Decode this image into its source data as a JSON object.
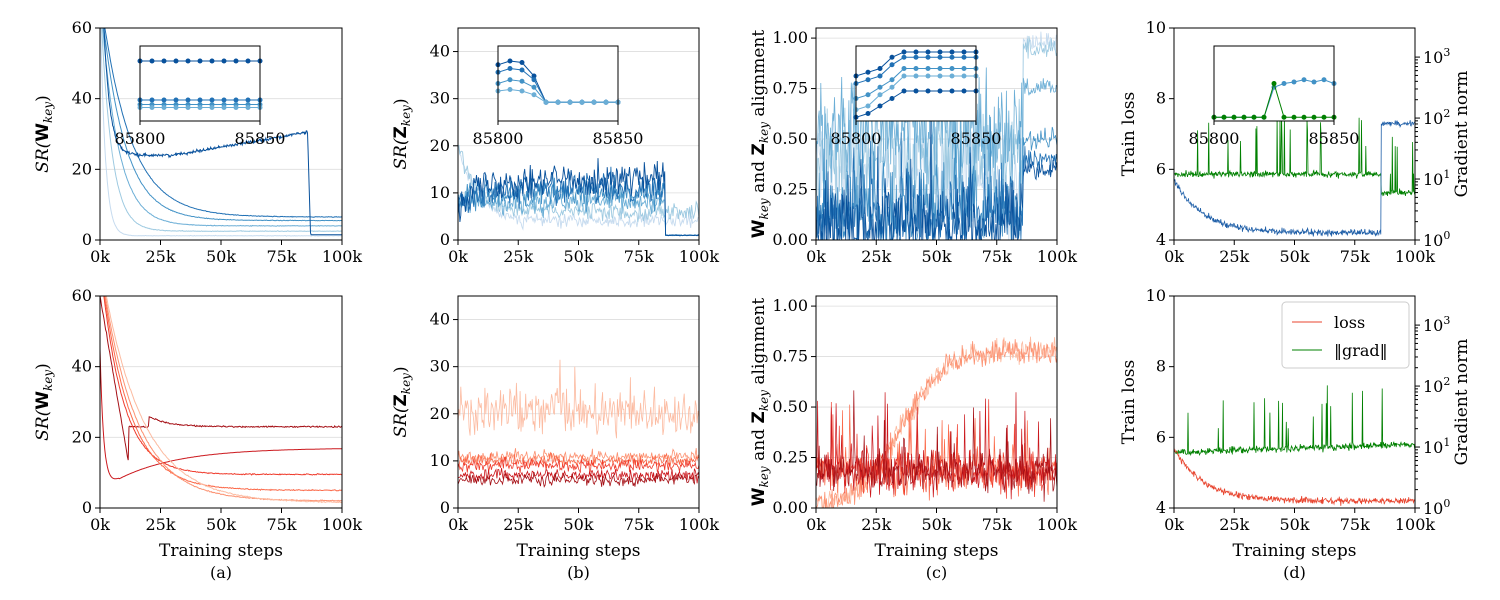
{
  "colors": {
    "blue_shades": [
      "#c6dbef",
      "#9ecae1",
      "#6baed6",
      "#4292c6",
      "#2171b5",
      "#08519c"
    ],
    "red_shades": [
      "#fcbba1",
      "#fc9272",
      "#fb6a4a",
      "#ef3b2c",
      "#cb181d",
      "#a50f15"
    ],
    "loss_blue": "#1f5fa8",
    "loss_red": "#e8452f",
    "grad_green": "#008000"
  },
  "captions": [
    "(a)",
    "(b)",
    "(c)",
    "(d)"
  ],
  "chart_data": [
    {
      "id": "a-top",
      "type": "line",
      "title": "",
      "ylabel_parts": [
        "SR(",
        "W",
        "key",
        ")"
      ],
      "xlabel": "",
      "xlim": [
        0,
        100000
      ],
      "ylim": [
        0,
        60
      ],
      "xticks": [
        "0k",
        "25k",
        "50k",
        "75k",
        "100k"
      ],
      "yticks": [
        "0",
        "20",
        "40",
        "60"
      ],
      "grid": true,
      "palette": "blue",
      "series_desc": "6 runs; sharp initial drop from >60; one run plateaus ~24-30 then collapses near 85.8k",
      "inset": {
        "xlim": [
          85800,
          85850
        ],
        "xticks": [
          "85800",
          "85850"
        ],
        "series_levels": [
          0.85,
          0.27,
          0.22,
          0.17
        ]
      }
    },
    {
      "id": "b-top",
      "type": "line",
      "ylabel_parts": [
        "SR(",
        "Z",
        "key",
        ")"
      ],
      "xlabel": "",
      "xlim": [
        0,
        100000
      ],
      "ylim": [
        0,
        45
      ],
      "xticks": [
        "0k",
        "25k",
        "50k",
        "75k",
        "100k"
      ],
      "yticks": [
        "0",
        "10",
        "20",
        "30",
        "40"
      ],
      "grid": true,
      "palette": "blue",
      "series_desc": "noisy runs between ~5 and ~15, dropping to ~1 at 85.8k",
      "inset": {
        "xlim": [
          85800,
          85850
        ],
        "xticks": [
          "85800",
          "85850"
        ]
      }
    },
    {
      "id": "c-top",
      "type": "line",
      "ylabel_parts": [
        "W",
        "key",
        " and ",
        "Z",
        "key",
        " alignment"
      ],
      "xlabel": "",
      "xlim": [
        0,
        100000
      ],
      "ylim": [
        0,
        1.05
      ],
      "xticks": [
        "0k",
        "25k",
        "50k",
        "75k",
        "100k"
      ],
      "yticks": [
        "0.00",
        "0.25",
        "0.50",
        "0.75",
        "1.00"
      ],
      "grid": true,
      "palette": "blue",
      "series_desc": "very noisy alignment 0-0.9; after 85.8k lines jump to ~0.4-1.0",
      "inset": {
        "xlim": [
          85800,
          85850
        ],
        "xticks": [
          "85800",
          "85850"
        ]
      }
    },
    {
      "id": "d-top",
      "type": "line",
      "ylabel": "Train loss",
      "ylabel_right": "Gradient norm",
      "xlabel": "",
      "xlim": [
        0,
        100000
      ],
      "ylim": [
        4,
        10
      ],
      "ylim_right_log": [
        1,
        3000
      ],
      "xticks": [
        "0k",
        "25k",
        "50k",
        "75k",
        "100k"
      ],
      "yticks": [
        "4",
        "6",
        "8",
        "10"
      ],
      "yticks_right": [
        {
          "base": "10",
          "exp": "0",
          "v": 1
        },
        {
          "base": "10",
          "exp": "1",
          "v": 10
        },
        {
          "base": "10",
          "exp": "2",
          "v": 100
        },
        {
          "base": "10",
          "exp": "3",
          "v": 1000
        }
      ],
      "grid": false,
      "series": [
        {
          "name": "loss",
          "desc": "starts ~5.7, decays to ~4.3 then jumps to ~7.3 at 85.8k"
        },
        {
          "name": "||grad||",
          "desc": "~10-15 with spikes up to ~200, drops to ~6 after 85.8k"
        }
      ],
      "inset": {
        "xlim": [
          85800,
          85850
        ],
        "xticks": [
          "85800",
          "85850"
        ]
      }
    },
    {
      "id": "a-bot",
      "type": "line",
      "ylabel_parts": [
        "SR(",
        "W",
        "key",
        ")"
      ],
      "xlabel": "Training steps",
      "xlim": [
        0,
        100000
      ],
      "ylim": [
        0,
        60
      ],
      "xticks": [
        "0k",
        "25k",
        "50k",
        "75k",
        "100k"
      ],
      "yticks": [
        "0",
        "20",
        "40",
        "60"
      ],
      "grid": true,
      "palette": "red",
      "series_final": [
        23,
        17,
        9.5,
        5,
        2,
        1.5
      ]
    },
    {
      "id": "b-bot",
      "type": "line",
      "ylabel_parts": [
        "SR(",
        "Z",
        "key",
        ")"
      ],
      "xlabel": "Training steps",
      "xlim": [
        0,
        100000
      ],
      "ylim": [
        0,
        45
      ],
      "xticks": [
        "0k",
        "25k",
        "50k",
        "75k",
        "100k"
      ],
      "yticks": [
        "0",
        "10",
        "20",
        "30",
        "40"
      ],
      "grid": true,
      "palette": "red",
      "series_level": [
        20,
        11,
        10,
        9,
        7,
        6
      ]
    },
    {
      "id": "c-bot",
      "type": "line",
      "ylabel_parts": [
        "W",
        "key",
        " and ",
        "Z",
        "key",
        " alignment"
      ],
      "xlabel": "Training steps",
      "xlim": [
        0,
        100000
      ],
      "ylim": [
        0,
        1.05
      ],
      "xticks": [
        "0k",
        "25k",
        "50k",
        "75k",
        "100k"
      ],
      "yticks": [
        "0.00",
        "0.25",
        "0.50",
        "0.75",
        "1.00"
      ],
      "grid": true,
      "palette": "red",
      "series_desc": "two runs rise to ~0.75, others noisy 0-0.4"
    },
    {
      "id": "d-bot",
      "type": "line",
      "ylabel": "Train loss",
      "ylabel_right": "Gradient norm",
      "xlabel": "Training steps",
      "xlim": [
        0,
        100000
      ],
      "ylim": [
        4,
        10
      ],
      "ylim_right_log": [
        1,
        3000
      ],
      "xticks": [
        "0k",
        "25k",
        "50k",
        "75k",
        "100k"
      ],
      "yticks": [
        "4",
        "6",
        "8",
        "10"
      ],
      "yticks_right": [
        {
          "base": "10",
          "exp": "0",
          "v": 1
        },
        {
          "base": "10",
          "exp": "1",
          "v": 10
        },
        {
          "base": "10",
          "exp": "2",
          "v": 100
        },
        {
          "base": "10",
          "exp": "3",
          "v": 1000
        }
      ],
      "grid": false,
      "legend": {
        "location": "top-right",
        "entries": [
          "loss",
          "‖grad‖"
        ]
      },
      "series": [
        {
          "name": "loss",
          "desc": "decays from ~6 to ~4.1"
        },
        {
          "name": "||grad||",
          "desc": "~8-12 with spikes up to ~100"
        }
      ]
    }
  ]
}
